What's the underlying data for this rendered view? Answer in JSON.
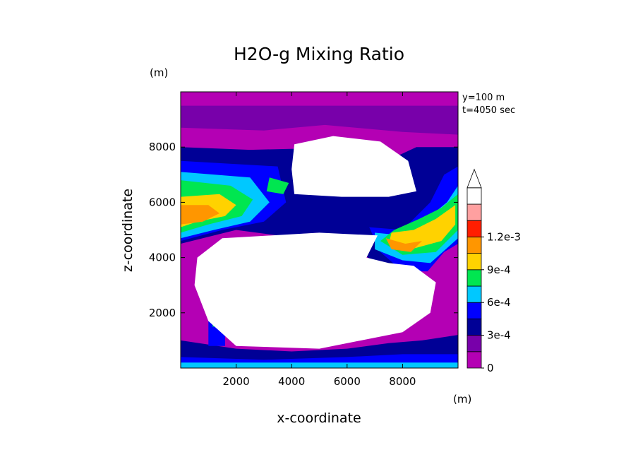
{
  "chart_data": {
    "type": "heatmap",
    "title": "H2O-g Mixing Ratio",
    "xlabel": "x-coordinate",
    "ylabel": "z-coordinate",
    "x_unit": "(m)",
    "y_unit": "(m)",
    "annotations": [
      "y=100 m",
      "t=4050 sec"
    ],
    "xlim": [
      0,
      10000
    ],
    "ylim": [
      0,
      10000
    ],
    "x_ticks": [
      2000,
      4000,
      6000,
      8000
    ],
    "y_ticks": [
      2000,
      4000,
      6000,
      8000
    ],
    "x_tick_labels": [
      "2000",
      "4000",
      "6000",
      "8000"
    ],
    "y_tick_labels": [
      "2000",
      "4000",
      "6000",
      "8000"
    ],
    "colorbar": {
      "levels": [
        0,
        0.00015,
        0.0003,
        0.00045,
        0.0006,
        0.00075,
        0.0009,
        0.00105,
        0.0012
      ],
      "tick_labels": [
        "0",
        "3e-4",
        "6e-4",
        "9e-4",
        "1.2e-3"
      ],
      "colors": [
        "#b400b4",
        "#7800aa",
        "#000096",
        "#0000ff",
        "#00c8ff",
        "#00e650",
        "#ffd200",
        "#ff9600",
        "#ff1e00",
        "#ffa0a0",
        "#ffffff"
      ]
    },
    "regions": [
      {
        "level": 1,
        "points": [
          [
            0,
            9500
          ],
          [
            10000,
            9500
          ],
          [
            10000,
            8450
          ],
          [
            8000,
            8550
          ],
          [
            5200,
            8800
          ],
          [
            3000,
            8600
          ],
          [
            0,
            8700
          ]
        ]
      },
      {
        "level": 2,
        "points": [
          [
            0,
            8000
          ],
          [
            2500,
            7900
          ],
          [
            4500,
            7950
          ],
          [
            5000,
            7400
          ],
          [
            7000,
            7300
          ],
          [
            8500,
            8000
          ],
          [
            10000,
            8000
          ],
          [
            10000,
            5700
          ],
          [
            9000,
            4900
          ],
          [
            8700,
            4000
          ],
          [
            8000,
            3200
          ],
          [
            7200,
            3600
          ],
          [
            6300,
            4400
          ],
          [
            5000,
            4900
          ],
          [
            3500,
            4800
          ],
          [
            2000,
            5000
          ],
          [
            0,
            4500
          ]
        ]
      },
      {
        "level": 3,
        "points": [
          [
            0,
            7500
          ],
          [
            3500,
            7300
          ],
          [
            3800,
            6000
          ],
          [
            3000,
            5300
          ],
          [
            1500,
            5000
          ],
          [
            0,
            4600
          ]
        ]
      },
      {
        "level": 3,
        "points": [
          [
            10000,
            7300
          ],
          [
            9500,
            7000
          ],
          [
            9000,
            6000
          ],
          [
            8000,
            5000
          ],
          [
            6800,
            5100
          ],
          [
            7200,
            4200
          ],
          [
            8000,
            3500
          ],
          [
            8900,
            3500
          ],
          [
            9500,
            4200
          ],
          [
            10000,
            4500
          ]
        ]
      },
      {
        "level": 4,
        "points": [
          [
            0,
            7100
          ],
          [
            2500,
            6900
          ],
          [
            3200,
            6000
          ],
          [
            2500,
            5300
          ],
          [
            1200,
            5000
          ],
          [
            0,
            4700
          ]
        ]
      },
      {
        "level": 4,
        "points": [
          [
            10000,
            6600
          ],
          [
            9600,
            6000
          ],
          [
            9000,
            5500
          ],
          [
            8000,
            4800
          ],
          [
            7000,
            4900
          ],
          [
            7000,
            4300
          ],
          [
            8000,
            3900
          ],
          [
            9000,
            3800
          ],
          [
            10000,
            4700
          ]
        ]
      },
      {
        "level": 5,
        "points": [
          [
            0,
            6800
          ],
          [
            1800,
            6600
          ],
          [
            2600,
            6100
          ],
          [
            2200,
            5500
          ],
          [
            1000,
            5200
          ],
          [
            0,
            4900
          ]
        ]
      },
      {
        "level": 5,
        "points": [
          [
            3200,
            6900
          ],
          [
            3900,
            6700
          ],
          [
            3700,
            6300
          ],
          [
            3100,
            6400
          ]
        ]
      },
      {
        "level": 5,
        "points": [
          [
            10000,
            6300
          ],
          [
            9400,
            5800
          ],
          [
            8600,
            5400
          ],
          [
            7700,
            5000
          ],
          [
            7200,
            4600
          ],
          [
            8000,
            4100
          ],
          [
            9200,
            4200
          ],
          [
            10000,
            5000
          ]
        ]
      },
      {
        "level": 6,
        "points": [
          [
            0,
            6200
          ],
          [
            1400,
            6300
          ],
          [
            2000,
            5900
          ],
          [
            1600,
            5500
          ],
          [
            600,
            5300
          ],
          [
            0,
            5100
          ]
        ]
      },
      {
        "level": 6,
        "points": [
          [
            9900,
            5900
          ],
          [
            9200,
            5400
          ],
          [
            8400,
            5000
          ],
          [
            7600,
            4900
          ],
          [
            7500,
            4500
          ],
          [
            8300,
            4300
          ],
          [
            9400,
            4600
          ],
          [
            9900,
            5200
          ]
        ]
      },
      {
        "level": 7,
        "points": [
          [
            0,
            5900
          ],
          [
            1000,
            5900
          ],
          [
            1400,
            5600
          ],
          [
            800,
            5300
          ],
          [
            0,
            5200
          ]
        ]
      },
      {
        "level": 7,
        "points": [
          [
            7400,
            4700
          ],
          [
            8100,
            4500
          ],
          [
            8700,
            4600
          ],
          [
            8300,
            4200
          ],
          [
            7600,
            4300
          ]
        ]
      },
      {
        "level": 2,
        "points": [
          [
            0,
            1000
          ],
          [
            2000,
            700
          ],
          [
            4000,
            600
          ],
          [
            6000,
            700
          ],
          [
            7500,
            900
          ],
          [
            8700,
            1000
          ],
          [
            10000,
            1200
          ],
          [
            10000,
            0
          ],
          [
            0,
            0
          ]
        ]
      },
      {
        "level": 3,
        "points": [
          [
            0,
            400
          ],
          [
            3000,
            300
          ],
          [
            6000,
            400
          ],
          [
            8000,
            500
          ],
          [
            10000,
            500
          ],
          [
            10000,
            0
          ],
          [
            0,
            0
          ]
        ]
      },
      {
        "level": 4,
        "points": [
          [
            0,
            200
          ],
          [
            10000,
            200
          ],
          [
            10000,
            0
          ],
          [
            0,
            0
          ]
        ]
      },
      {
        "level": 2,
        "points": [
          [
            2900,
            3600
          ],
          [
            4500,
            3600
          ],
          [
            4500,
            3300
          ],
          [
            2900,
            3300
          ]
        ]
      },
      {
        "level": 4,
        "points": [
          [
            3500,
            3500
          ],
          [
            4100,
            3500
          ],
          [
            4100,
            3400
          ],
          [
            3500,
            3400
          ]
        ]
      },
      {
        "level": 3,
        "points": [
          [
            1000,
            2000
          ],
          [
            1600,
            2000
          ],
          [
            1600,
            800
          ],
          [
            1000,
            800
          ]
        ]
      },
      {
        "level": 5,
        "points": [
          [
            1150,
            1700
          ],
          [
            1450,
            1700
          ],
          [
            1450,
            1500
          ],
          [
            1150,
            1500
          ]
        ]
      },
      {
        "level": 10,
        "points": [
          [
            4100,
            8100
          ],
          [
            5500,
            8400
          ],
          [
            7200,
            8200
          ],
          [
            8200,
            7500
          ],
          [
            8500,
            6400
          ],
          [
            7500,
            6200
          ],
          [
            5800,
            6200
          ],
          [
            4100,
            6300
          ],
          [
            4000,
            7200
          ]
        ]
      },
      {
        "level": 10,
        "points": [
          [
            1500,
            4700
          ],
          [
            5000,
            4900
          ],
          [
            7100,
            4800
          ],
          [
            6700,
            4000
          ],
          [
            7500,
            3800
          ],
          [
            8400,
            3700
          ],
          [
            9200,
            3100
          ],
          [
            9000,
            2000
          ],
          [
            8000,
            1300
          ],
          [
            5000,
            700
          ],
          [
            2000,
            800
          ],
          [
            1000,
            1700
          ],
          [
            500,
            3000
          ],
          [
            600,
            4000
          ]
        ]
      }
    ]
  }
}
